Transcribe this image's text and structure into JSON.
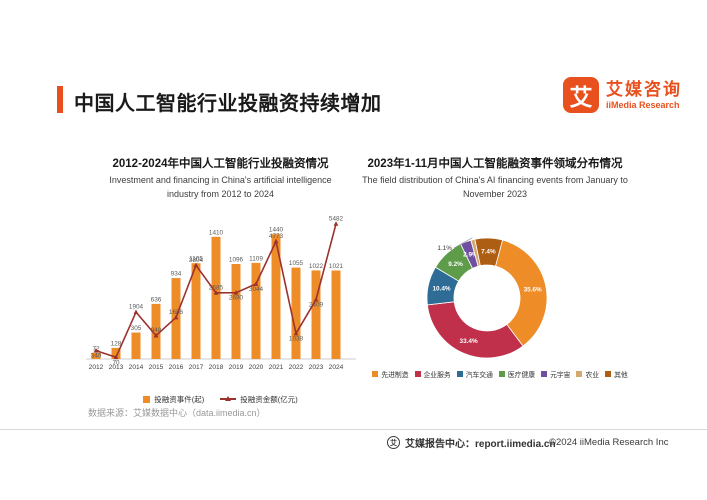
{
  "header": {
    "title": "中国人工智能行业投融资持续增加",
    "accent_color": "#E8501E"
  },
  "logo": {
    "icon_char": "艾",
    "name_cn": "艾媒咨询",
    "name_en": "iiMedia Research"
  },
  "source_note": "数据来源：艾媒数据中心（data.iimedia.cn）",
  "footer": {
    "report_center": "艾媒报告中心：report.iimedia.cn",
    "copyright": "©2024 iiMedia Research Inc"
  },
  "chart_data": [
    {
      "type": "bar",
      "title": "2012-2024年中国人工智能行业投融资情况",
      "subtitle": [
        "Investment and financing in China's artificial intelligence",
        "industry from 2012 to 2024"
      ],
      "categories": [
        "2012",
        "2013",
        "2014",
        "2015",
        "2016",
        "2017",
        "2018",
        "2019",
        "2020",
        "2021",
        "2022",
        "2023",
        "2024"
      ],
      "series": [
        {
          "name": "投融资事件(起)",
          "type": "bar",
          "color": "#EE8C28",
          "values": [
            72,
            128,
            305,
            636,
            934,
            1105,
            1410,
            1096,
            1109,
            1440,
            1055,
            1022,
            1021
          ]
        },
        {
          "name": "投融资金额(亿元)",
          "type": "line",
          "color": "#9B3230",
          "values": [
            340,
            70,
            1904,
            948,
            1686,
            3804,
            2685,
            2690,
            3044,
            4773,
            1038,
            2409,
            5482
          ]
        }
      ],
      "ylim_bar": [
        0,
        1500
      ],
      "ylim_line": [
        0,
        5600
      ],
      "grid": false,
      "legend_position": "bottom"
    },
    {
      "type": "pie",
      "title": "2023年1-11月中国人工智能融资事件领域分布情况",
      "subtitle": [
        "The field distribution of China's AI financing events from January to",
        "November 2023"
      ],
      "donut": true,
      "start_angle_deg": 15,
      "segments": [
        {
          "label": "先进制造",
          "value": 35.6,
          "color": "#EE8C28"
        },
        {
          "label": "企业服务",
          "value": 33.4,
          "color": "#C0304A"
        },
        {
          "label": "汽车交通",
          "value": 10.4,
          "color": "#2F6C95"
        },
        {
          "label": "医疗健康",
          "value": 9.2,
          "color": "#5E9C49"
        },
        {
          "label": "元宇宙",
          "value": 2.9,
          "color": "#6F4FA1"
        },
        {
          "label": "农业",
          "value": 1.1,
          "color": "#D3A972"
        },
        {
          "label": "其他",
          "value": 7.4,
          "color": "#AE5E13"
        }
      ],
      "legend_position": "bottom"
    }
  ]
}
